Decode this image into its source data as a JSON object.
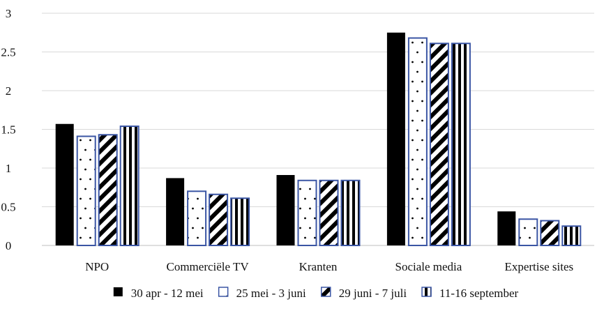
{
  "chart_data": {
    "type": "bar",
    "title": "",
    "xlabel": "",
    "ylabel": "",
    "ylim": [
      0,
      3
    ],
    "yticks": [
      0,
      0.5,
      1,
      1.5,
      2,
      2.5,
      3
    ],
    "ytick_labels": [
      "0",
      "0.5",
      "1",
      "1.5",
      "2",
      "2.5",
      "3"
    ],
    "grid": "horizontal",
    "legend_position": "bottom",
    "categories": [
      "NPO",
      "Commerciële TV",
      "Kranten",
      "Sociale media",
      "Expertise sites"
    ],
    "series": [
      {
        "name": "30 apr - 12 mei",
        "pattern": "solid",
        "values": [
          1.57,
          0.87,
          0.91,
          2.75,
          0.44
        ]
      },
      {
        "name": "25 mei - 3 juni",
        "pattern": "dots",
        "values": [
          1.41,
          0.7,
          0.84,
          2.68,
          0.34
        ]
      },
      {
        "name": "29 juni - 7 juli",
        "pattern": "diagonal",
        "values": [
          1.43,
          0.66,
          0.84,
          2.61,
          0.32
        ]
      },
      {
        "name": "11-16 september",
        "pattern": "vertical",
        "values": [
          1.54,
          0.61,
          0.84,
          2.61,
          0.25
        ]
      }
    ],
    "colors": {
      "fill": "#000000",
      "outline": "#3a55a4",
      "grid": "#d9d9d9"
    }
  }
}
